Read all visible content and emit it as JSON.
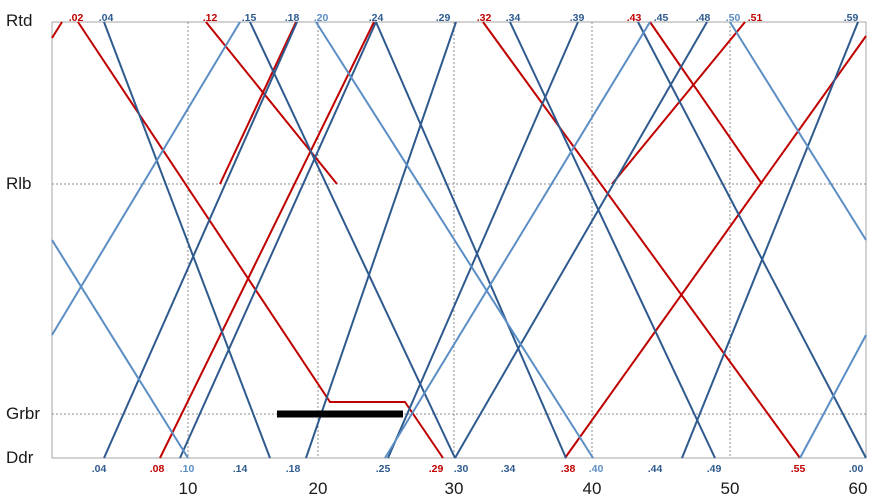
{
  "colors": {
    "red": "#c00000",
    "dark_blue": "#2e5a8e",
    "light_blue": "#5b8ec4",
    "frame": "#a6a6a6",
    "grid": "#8c8c8c",
    "bar": "#000000"
  },
  "y_labels": [
    "Rtd",
    "Rlb",
    "Grbr",
    "Ddr"
  ],
  "x_axis": {
    "ticks": [
      "10",
      "20",
      "30",
      "40",
      "50",
      "60"
    ]
  },
  "top_labels": [
    {
      "text": ".02",
      "color": "red"
    },
    {
      "text": ".04",
      "color": "dark_blue"
    },
    {
      "text": ".12",
      "color": "red"
    },
    {
      "text": ".15",
      "color": "dark_blue"
    },
    {
      "text": ".18",
      "color": "dark_blue"
    },
    {
      "text": ".20",
      "color": "light_blue"
    },
    {
      "text": ".24",
      "color": "dark_blue"
    },
    {
      "text": ".29",
      "color": "dark_blue"
    },
    {
      "text": ".32",
      "color": "red"
    },
    {
      "text": ".34",
      "color": "dark_blue"
    },
    {
      "text": ".39",
      "color": "dark_blue"
    },
    {
      "text": ".43",
      "color": "red"
    },
    {
      "text": ".45",
      "color": "dark_blue"
    },
    {
      "text": ".48",
      "color": "dark_blue"
    },
    {
      "text": ".50",
      "color": "light_blue"
    },
    {
      "text": ".51",
      "color": "red"
    },
    {
      "text": ".59",
      "color": "dark_blue"
    }
  ],
  "bottom_labels": [
    {
      "text": ".04",
      "color": "dark_blue"
    },
    {
      "text": ".08",
      "color": "red"
    },
    {
      "text": ".10",
      "color": "light_blue"
    },
    {
      "text": ".14",
      "color": "dark_blue"
    },
    {
      "text": ".18",
      "color": "dark_blue"
    },
    {
      "text": ".25",
      "color": "dark_blue"
    },
    {
      "text": ".29",
      "color": "red"
    },
    {
      "text": ".30",
      "color": "dark_blue"
    },
    {
      "text": ".34",
      "color": "dark_blue"
    },
    {
      "text": ".38",
      "color": "red"
    },
    {
      "text": ".40",
      "color": "light_blue"
    },
    {
      "text": ".44",
      "color": "dark_blue"
    },
    {
      "text": ".49",
      "color": "dark_blue"
    },
    {
      "text": ".55",
      "color": "red"
    },
    {
      "text": ".00",
      "color": "dark_blue"
    }
  ],
  "lines": [
    {
      "color": "red",
      "points": [
        [
          52,
          38
        ],
        [
          62,
          22
        ]
      ]
    },
    {
      "color": "red",
      "points": [
        [
          78,
          22
        ],
        [
          330,
          402
        ],
        [
          405,
          402
        ],
        [
          443,
          458
        ]
      ]
    },
    {
      "color": "red",
      "points": [
        [
          160,
          458
        ],
        [
          374,
          22
        ]
      ]
    },
    {
      "color": "red",
      "points": [
        [
          220,
          184
        ],
        [
          296,
          22
        ]
      ]
    },
    {
      "color": "red",
      "points": [
        [
          206,
          22
        ],
        [
          337,
          184
        ]
      ]
    },
    {
      "color": "red",
      "points": [
        [
          483,
          22
        ],
        [
          800,
          458
        ]
      ]
    },
    {
      "color": "red",
      "points": [
        [
          565,
          458
        ],
        [
          866,
          36
        ]
      ]
    },
    {
      "color": "red",
      "points": [
        [
          612,
          184
        ],
        [
          745,
          22
        ]
      ]
    },
    {
      "color": "red",
      "points": [
        [
          650,
          22
        ],
        [
          762,
          184
        ]
      ]
    },
    {
      "color": "dark_blue",
      "points": [
        [
          104,
          22
        ],
        [
          270,
          458
        ]
      ]
    },
    {
      "color": "dark_blue",
      "points": [
        [
          104,
          458
        ],
        [
          297,
          22
        ]
      ]
    },
    {
      "color": "dark_blue",
      "points": [
        [
          250,
          22
        ],
        [
          455,
          458
        ]
      ]
    },
    {
      "color": "dark_blue",
      "points": [
        [
          180,
          458
        ],
        [
          376,
          22
        ]
      ]
    },
    {
      "color": "dark_blue",
      "points": [
        [
          376,
          22
        ],
        [
          566,
          458
        ]
      ]
    },
    {
      "color": "dark_blue",
      "points": [
        [
          388,
          458
        ],
        [
          578,
          22
        ]
      ]
    },
    {
      "color": "dark_blue",
      "points": [
        [
          456,
          22
        ],
        [
          306,
          458
        ]
      ]
    },
    {
      "color": "dark_blue",
      "points": [
        [
          510,
          22
        ],
        [
          715,
          458
        ]
      ]
    },
    {
      "color": "dark_blue",
      "points": [
        [
          455,
          458
        ],
        [
          707,
          22
        ]
      ]
    },
    {
      "color": "dark_blue",
      "points": [
        [
          638,
          22
        ],
        [
          866,
          458
        ]
      ]
    },
    {
      "color": "dark_blue",
      "points": [
        [
          682,
          458
        ],
        [
          858,
          22
        ]
      ]
    },
    {
      "color": "light_blue",
      "points": [
        [
          52,
          335
        ],
        [
          240,
          22
        ]
      ]
    },
    {
      "color": "light_blue",
      "points": [
        [
          52,
          240
        ],
        [
          188,
          458
        ]
      ]
    },
    {
      "color": "light_blue",
      "points": [
        [
          316,
          22
        ],
        [
          593,
          458
        ]
      ]
    },
    {
      "color": "light_blue",
      "points": [
        [
          385,
          458
        ],
        [
          650,
          22
        ]
      ]
    },
    {
      "color": "light_blue",
      "points": [
        [
          730,
          22
        ],
        [
          866,
          240
        ]
      ]
    },
    {
      "color": "light_blue",
      "points": [
        [
          800,
          458
        ],
        [
          866,
          335
        ]
      ]
    }
  ]
}
